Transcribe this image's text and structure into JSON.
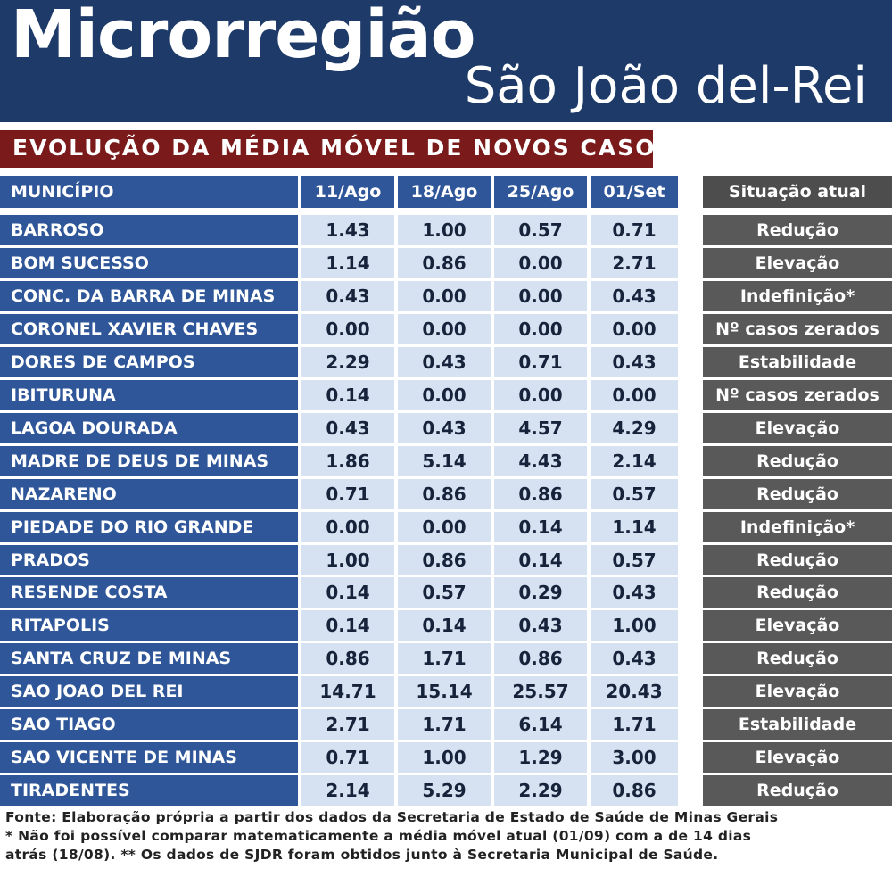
{
  "header": {
    "title": "Microrregião",
    "subtitle": "São João del-Rei"
  },
  "banner": "EVOLUÇÃO DA MÉDIA MÓVEL DE NOVOS CASOS",
  "chart_data": {
    "type": "table",
    "columns": [
      "MUNICÍPIO",
      "11/Ago",
      "18/Ago",
      "25/Ago",
      "01/Set",
      "Situação atual"
    ],
    "rows": [
      {
        "municipio": "BARROSO",
        "values": [
          "1.43",
          "1.00",
          "0.57",
          "0.71"
        ],
        "situacao": "Redução"
      },
      {
        "municipio": "BOM SUCESSO",
        "values": [
          "1.14",
          "0.86",
          "0.00",
          "2.71"
        ],
        "situacao": "Elevação"
      },
      {
        "municipio": "CONC. DA BARRA DE MINAS",
        "values": [
          "0.43",
          "0.00",
          "0.00",
          "0.43"
        ],
        "situacao": "Indefinição*"
      },
      {
        "municipio": "CORONEL XAVIER CHAVES",
        "values": [
          "0.00",
          "0.00",
          "0.00",
          "0.00"
        ],
        "situacao": "Nº casos zerados"
      },
      {
        "municipio": "DORES DE CAMPOS",
        "values": [
          "2.29",
          "0.43",
          "0.71",
          "0.43"
        ],
        "situacao": "Estabilidade"
      },
      {
        "municipio": "IBITURUNA",
        "values": [
          "0.14",
          "0.00",
          "0.00",
          "0.00"
        ],
        "situacao": "Nº casos zerados"
      },
      {
        "municipio": "LAGOA DOURADA",
        "values": [
          "0.43",
          "0.43",
          "4.57",
          "4.29"
        ],
        "situacao": "Elevação"
      },
      {
        "municipio": "MADRE DE DEUS DE MINAS",
        "values": [
          "1.86",
          "5.14",
          "4.43",
          "2.14"
        ],
        "situacao": "Redução"
      },
      {
        "municipio": "NAZARENO",
        "values": [
          "0.71",
          "0.86",
          "0.86",
          "0.57"
        ],
        "situacao": "Redução"
      },
      {
        "municipio": "PIEDADE DO RIO GRANDE",
        "values": [
          "0.00",
          "0.00",
          "0.14",
          "1.14"
        ],
        "situacao": "Indefinição*"
      },
      {
        "municipio": "PRADOS",
        "values": [
          "1.00",
          "0.86",
          "0.14",
          "0.57"
        ],
        "situacao": "Redução"
      },
      {
        "municipio": "RESENDE COSTA",
        "values": [
          "0.14",
          "0.57",
          "0.29",
          "0.43"
        ],
        "situacao": "Redução"
      },
      {
        "municipio": "RITAPOLIS",
        "values": [
          "0.14",
          "0.14",
          "0.43",
          "1.00"
        ],
        "situacao": "Elevação"
      },
      {
        "municipio": "SANTA CRUZ DE MINAS",
        "values": [
          "0.86",
          "1.71",
          "0.86",
          "0.43"
        ],
        "situacao": "Redução"
      },
      {
        "municipio": "SAO JOAO DEL REI",
        "values": [
          "14.71",
          "15.14",
          "25.57",
          "20.43"
        ],
        "situacao": "Elevação"
      },
      {
        "municipio": "SAO TIAGO",
        "values": [
          "2.71",
          "1.71",
          "6.14",
          "1.71"
        ],
        "situacao": "Estabilidade"
      },
      {
        "municipio": "SAO VICENTE DE MINAS",
        "values": [
          "0.71",
          "1.00",
          "1.29",
          "3.00"
        ],
        "situacao": "Elevação"
      },
      {
        "municipio": "TIRADENTES",
        "values": [
          "2.14",
          "5.29",
          "2.29",
          "0.86"
        ],
        "situacao": "Redução"
      }
    ]
  },
  "footer": {
    "line1": "Fonte: Elaboração própria a partir dos dados da Secretaria de Estado de Saúde de Minas Gerais",
    "line2": "* Não foi possível comparar matematicamente a média móvel atual (01/09) com a de 14 dias",
    "line3": " atrás (18/08). ** Os dados de SJDR foram obtidos junto à Secretaria Municipal de Saúde."
  }
}
